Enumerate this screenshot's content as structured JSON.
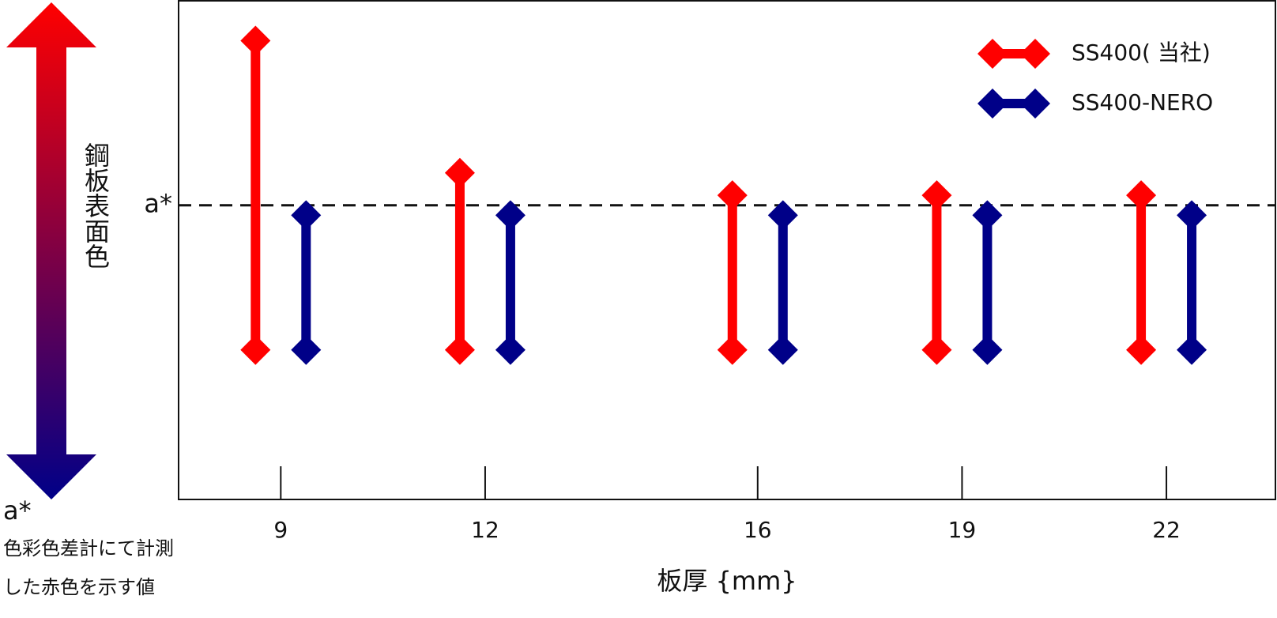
{
  "chart_data": {
    "type": "range",
    "x_label": "板厚 {mm}",
    "x": [
      9,
      12,
      16,
      19,
      22
    ],
    "xlim": [
      7.5,
      23.6
    ],
    "xticks": [
      9,
      12,
      16,
      19,
      22
    ],
    "ylim": [
      0,
      100
    ],
    "series": [
      {
        "name": "SS400( 当社)",
        "color": "#ff0000",
        "high": [
          92,
          65.5,
          61,
          61,
          61
        ],
        "low": [
          30,
          30,
          30,
          30,
          30
        ]
      },
      {
        "name": "SS400-NERO",
        "color": "#000088",
        "high": [
          57,
          57,
          57,
          57,
          57
        ],
        "low": [
          30,
          30,
          30,
          30,
          30
        ]
      }
    ],
    "reference": {
      "value": 59,
      "label": "a*"
    },
    "y_arrow_label": "鋼板表面色",
    "note": {
      "symbol": "a*",
      "lines": [
        "色彩色差計にて計測",
        "した赤色を示す値"
      ]
    },
    "legend": "upper right"
  }
}
